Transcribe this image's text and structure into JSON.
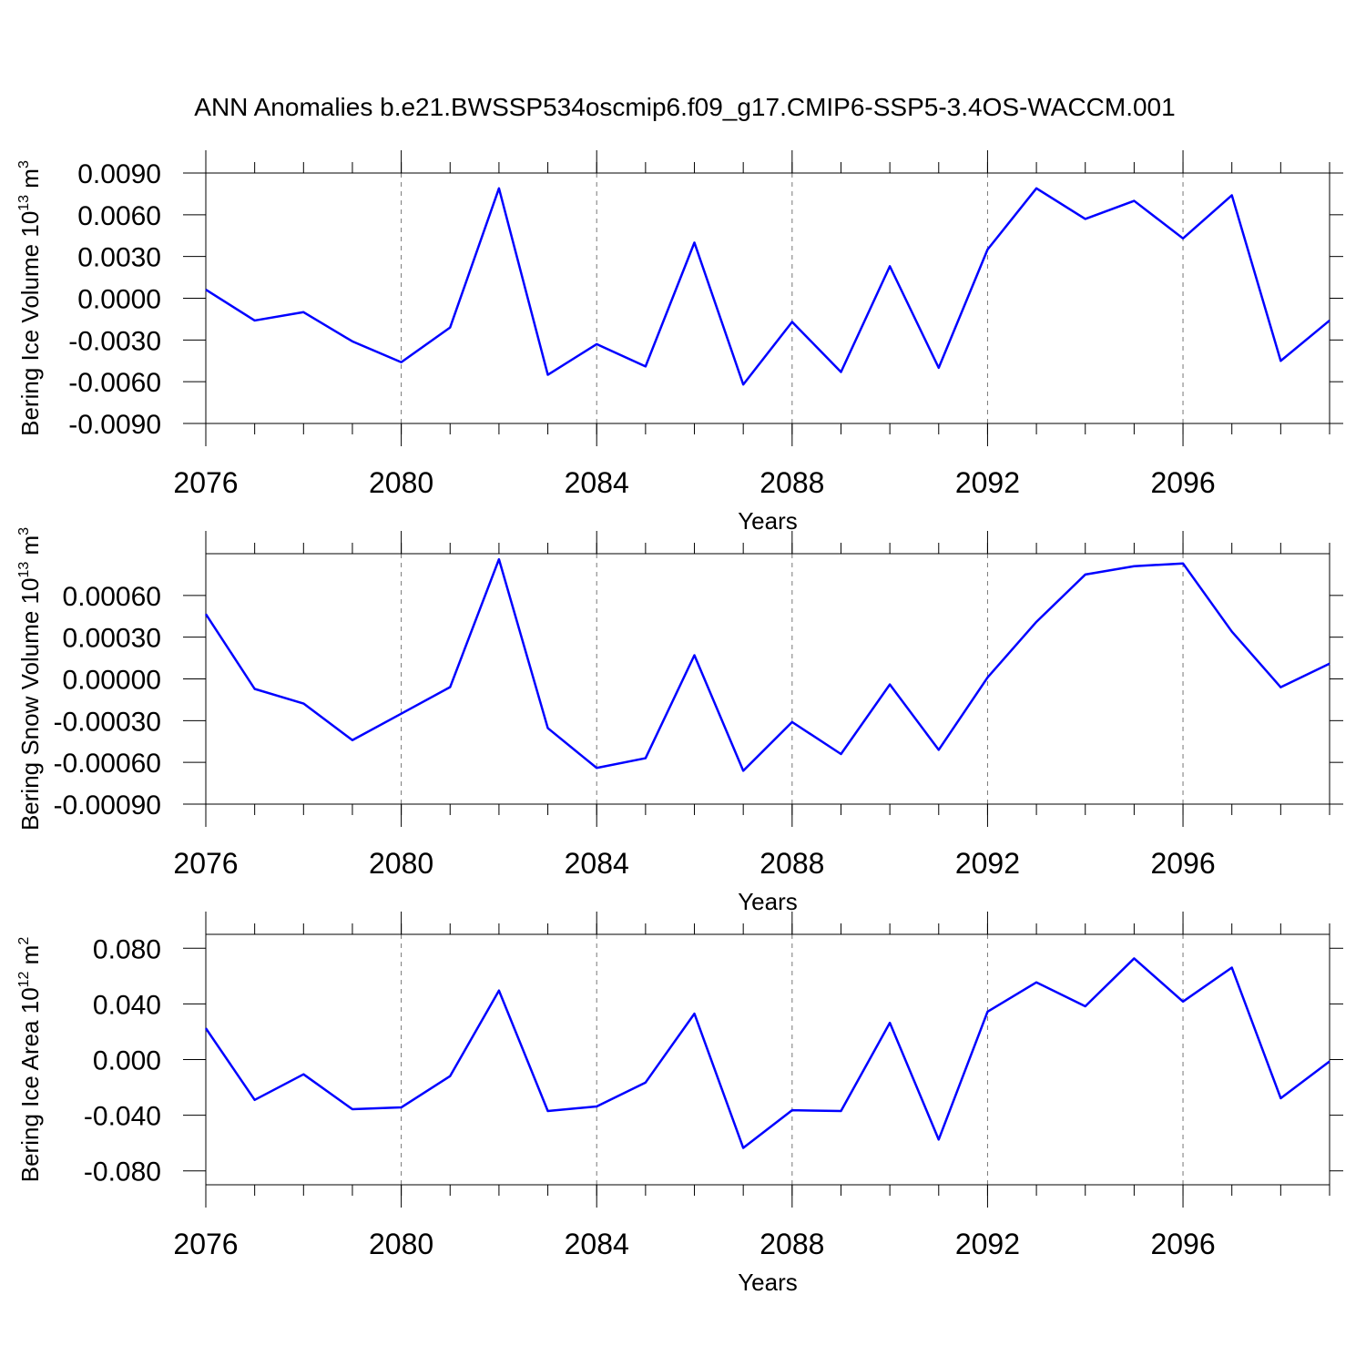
{
  "chart_data": [
    {
      "type": "line",
      "title": "ANN Anomalies b.e21.BWSSP534oscmip6.f09_g17.CMIP6-SSP5-3.4OS-WACCM.001",
      "xlabel": "Years",
      "ylabel": [
        "Bering Ice Volume 10",
        "13",
        " m",
        "3"
      ],
      "x": [
        2076,
        2077,
        2078,
        2079,
        2080,
        2081,
        2082,
        2083,
        2084,
        2085,
        2086,
        2087,
        2088,
        2089,
        2090,
        2091,
        2092,
        2093,
        2094,
        2095,
        2096,
        2097,
        2098,
        2099
      ],
      "values": [
        0.00062,
        -0.0016,
        -0.001,
        -0.0031,
        -0.0046,
        -0.0021,
        0.0079,
        -0.0055,
        -0.0033,
        -0.0049,
        0.004,
        -0.0062,
        -0.0017,
        -0.0053,
        0.0023,
        -0.005,
        0.0035,
        0.0079,
        0.0057,
        0.007,
        0.0043,
        0.0074,
        -0.0045,
        -0.0016
      ],
      "color": "#0000ff",
      "xlim": [
        2076,
        2099
      ],
      "xticks": [
        2076,
        2080,
        2084,
        2088,
        2092,
        2096
      ],
      "grid": true,
      "ylim": [
        -0.009,
        0.009
      ],
      "yticks": [
        {
          "value": -0.009,
          "label": "-0.0090"
        },
        {
          "value": -0.006,
          "label": "-0.0060"
        },
        {
          "value": -0.003,
          "label": "-0.0030"
        },
        {
          "value": 0,
          "label": "0.0000"
        },
        {
          "value": 0.003,
          "label": "0.0030"
        },
        {
          "value": 0.006,
          "label": "0.0060"
        },
        {
          "value": 0.009,
          "label": "0.0090"
        }
      ]
    },
    {
      "type": "line",
      "xlabel": "Years",
      "ylabel": [
        "Bering Snow Volume 10",
        "13",
        " m",
        "3"
      ],
      "x": [
        2076,
        2077,
        2078,
        2079,
        2080,
        2081,
        2082,
        2083,
        2084,
        2085,
        2086,
        2087,
        2088,
        2089,
        2090,
        2091,
        2092,
        2093,
        2094,
        2095,
        2096,
        2097,
        2098,
        2099
      ],
      "values": [
        0.000466,
        -7.2e-05,
        -0.000177,
        -0.00044,
        -0.00025,
        -5.9e-05,
        0.00086,
        -0.000354,
        -0.00064,
        -0.00057,
        0.00017,
        -0.00066,
        -0.00031,
        -0.00054,
        -4e-05,
        -0.00051,
        1e-05,
        0.00041,
        0.00075,
        0.00081,
        0.00083,
        0.00034,
        -6e-05,
        0.00011
      ],
      "color": "#0000ff",
      "xlim": [
        2076,
        2099
      ],
      "xticks": [
        2076,
        2080,
        2084,
        2088,
        2092,
        2096
      ],
      "grid": true,
      "ylim": [
        -0.0009,
        0.0009
      ],
      "yticks": [
        {
          "value": -0.0009,
          "label": "-0.00090"
        },
        {
          "value": -0.0006,
          "label": "-0.00060"
        },
        {
          "value": -0.0003,
          "label": "-0.00030"
        },
        {
          "value": 0,
          "label": "0.00000"
        },
        {
          "value": 0.0003,
          "label": "0.00030"
        },
        {
          "value": 0.0006,
          "label": "0.00060"
        }
      ]
    },
    {
      "type": "line",
      "xlabel": "Years",
      "ylabel": [
        "Bering Ice Area 10",
        "12",
        " m",
        "2"
      ],
      "x": [
        2076,
        2077,
        2078,
        2079,
        2080,
        2081,
        2082,
        2083,
        2084,
        2085,
        2086,
        2087,
        2088,
        2089,
        2090,
        2091,
        2092,
        2093,
        2094,
        2095,
        2096,
        2097,
        2098,
        2099
      ],
      "values": [
        0.0225,
        -0.029,
        -0.0106,
        -0.0357,
        -0.0344,
        -0.0119,
        0.0496,
        -0.037,
        -0.0337,
        -0.0165,
        0.033,
        -0.0635,
        -0.0364,
        -0.037,
        0.0264,
        -0.0575,
        0.0344,
        0.0555,
        0.0383,
        0.0727,
        0.0417,
        0.0661,
        -0.0278,
        -0.0013
      ],
      "color": "#0000ff",
      "xlim": [
        2076,
        2099
      ],
      "xticks": [
        2076,
        2080,
        2084,
        2088,
        2092,
        2096
      ],
      "grid": true,
      "ylim": [
        -0.09,
        0.09
      ],
      "yticks": [
        {
          "value": -0.08,
          "label": "-0.080"
        },
        {
          "value": -0.04,
          "label": "-0.040"
        },
        {
          "value": 0,
          "label": "0.000"
        },
        {
          "value": 0.04,
          "label": "0.040"
        },
        {
          "value": 0.08,
          "label": "0.080"
        }
      ]
    }
  ]
}
